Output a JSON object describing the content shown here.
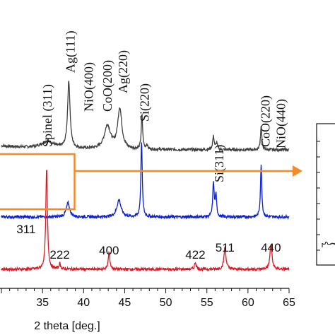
{
  "chart_data": {
    "type": "line",
    "title": "",
    "xlabel": "2 theta [deg.]",
    "ylabel": "",
    "xlim": [
      30,
      65
    ],
    "x_ticks": [
      "35",
      "40",
      "45",
      "50",
      "55",
      "60",
      "65"
    ],
    "grid": false,
    "legend": "none",
    "series": [
      {
        "color": "#404040",
        "baseline": 1.0,
        "peaks": [
          {
            "x": 35.6,
            "h": 0.45,
            "w": 0.9
          },
          {
            "x": 38.2,
            "h": 4.3,
            "w": 0.18
          },
          {
            "x": 42.9,
            "h": 1.5,
            "w": 0.45
          },
          {
            "x": 44.4,
            "h": 2.6,
            "w": 0.3
          },
          {
            "x": 47.1,
            "h": 2.2,
            "w": 0.1
          },
          {
            "x": 47.7,
            "h": 0.3,
            "w": 0.1
          },
          {
            "x": 55.8,
            "h": 0.85,
            "w": 0.12
          },
          {
            "x": 56.2,
            "h": 0.45,
            "w": 0.1
          },
          {
            "x": 61.6,
            "h": 1.5,
            "w": 0.1
          }
        ],
        "labels": [
          {
            "text": "Spinel (311)",
            "x": 35.6
          },
          {
            "text": "Ag(111)",
            "x": 38.4
          },
          {
            "text": "NiO(400)",
            "x": 40.6
          },
          {
            "text": "CoO(200)",
            "x": 42.9
          },
          {
            "text": "Ag(220)",
            "x": 44.8
          },
          {
            "text": "Si(220)",
            "x": 47.4
          },
          {
            "text": "Si(311)",
            "x": 56.5
          },
          {
            "text": "CoO(220)",
            "x": 62.1
          },
          {
            "text": "NiO(440)",
            "x": 64.0
          }
        ]
      },
      {
        "color": "#0a1fd6",
        "baseline": 1.0,
        "peaks": [
          {
            "x": 38.1,
            "h": 0.9,
            "w": 0.25
          },
          {
            "x": 44.3,
            "h": 1.1,
            "w": 0.3
          },
          {
            "x": 47.05,
            "h": 4.9,
            "w": 0.1
          },
          {
            "x": 55.8,
            "h": 2.2,
            "w": 0.1
          },
          {
            "x": 56.1,
            "h": 1.4,
            "w": 0.1
          },
          {
            "x": 61.6,
            "h": 3.3,
            "w": 0.1
          }
        ],
        "labels": []
      },
      {
        "color": "#d81b24",
        "baseline": 1.0,
        "peaks": [
          {
            "x": 35.5,
            "h": 6.5,
            "w": 0.12
          },
          {
            "x": 37.1,
            "h": 0.35,
            "w": 0.12
          },
          {
            "x": 43.1,
            "h": 1.1,
            "w": 0.12
          },
          {
            "x": 53.6,
            "h": 0.45,
            "w": 0.12
          },
          {
            "x": 57.2,
            "h": 1.4,
            "w": 0.15
          },
          {
            "x": 62.8,
            "h": 1.6,
            "w": 0.15
          }
        ],
        "labels": [
          {
            "text": "311",
            "x": 33.0
          },
          {
            "text": "222",
            "x": 37.1
          },
          {
            "text": "400",
            "x": 43.1
          },
          {
            "text": "422",
            "x": 53.6
          },
          {
            "text": "511",
            "x": 57.2
          },
          {
            "text": "440",
            "x": 62.8
          }
        ]
      }
    ],
    "annotations": [
      {
        "type": "zoom-box",
        "x_range": [
          30,
          38.9
        ],
        "color": "#f28c28"
      },
      {
        "type": "arrow",
        "color": "#f28c28"
      }
    ]
  }
}
